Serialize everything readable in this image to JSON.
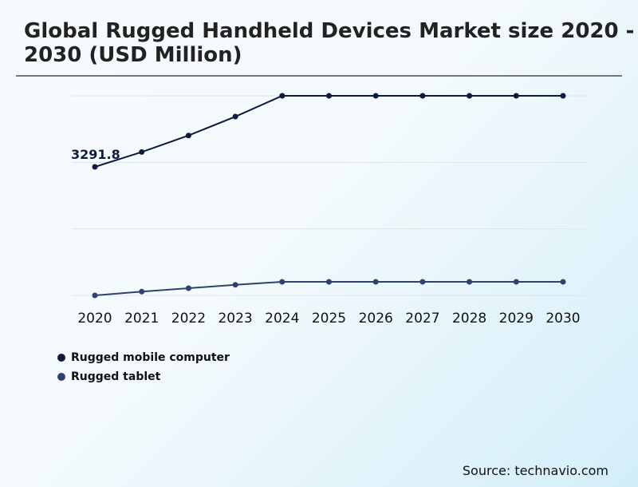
{
  "chart_data": {
    "type": "line",
    "title": "Global Rugged Handheld Devices Market size 2020 - 2030 (USD Million)",
    "x": [
      "2020",
      "2021",
      "2022",
      "2023",
      "2024",
      "2025",
      "2026",
      "2027",
      "2028",
      "2029",
      "2030"
    ],
    "series": [
      {
        "name": "Rugged mobile computer",
        "color": "#0d1b3e",
        "values": [
          3291.8,
          3672,
          4095,
          4580,
          5112,
          5112,
          5112,
          5112,
          5112,
          5112,
          5112
        ]
      },
      {
        "name": "Rugged tablet",
        "color": "#2e4272",
        "values": [
          0,
          96,
          184,
          272,
          348,
          348,
          348,
          348,
          348,
          348,
          348
        ]
      }
    ],
    "annotations": [
      {
        "series": 0,
        "index": 0,
        "text": "3291.8"
      }
    ],
    "ylim": [
      0,
      5112
    ],
    "grid": true,
    "legend_placement": "bottom-left",
    "xlabel": "",
    "ylabel": ""
  },
  "source": "Source: technavio.com"
}
